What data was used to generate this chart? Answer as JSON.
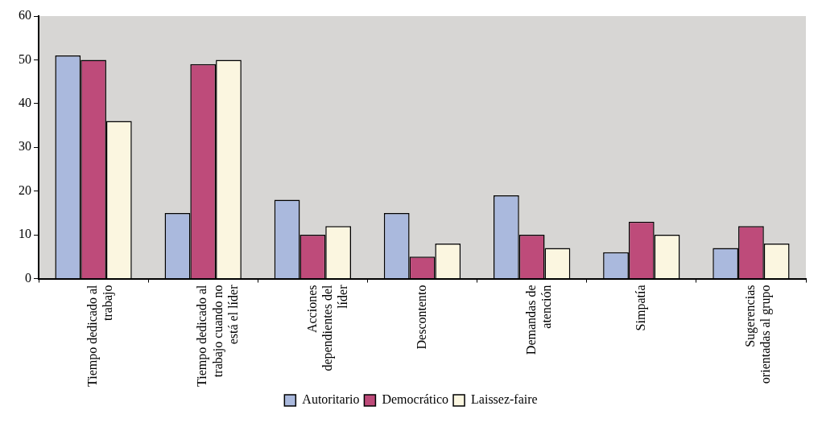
{
  "chart_data": {
    "type": "bar",
    "categories": [
      "Tiempo dedicado al trabajo",
      "Tiempo dedicado al trabajo cuando no está el líder",
      "Acciones dependientes del líder",
      "Descontento",
      "Demandas de atención",
      "Simpatía",
      "Sugerencias orientadas al grupo"
    ],
    "series": [
      {
        "name": "Autoritario",
        "color": "#aab9dd",
        "values": [
          51,
          15,
          18,
          15,
          19,
          6,
          7
        ]
      },
      {
        "name": "Democrático",
        "color": "#be4b7a",
        "values": [
          50,
          49,
          10,
          5,
          10,
          13,
          12
        ]
      },
      {
        "name": "Laissez-faire",
        "color": "#fbf6e0",
        "values": [
          36,
          50,
          12,
          8,
          7,
          10,
          8
        ]
      }
    ],
    "ylim": [
      0,
      60
    ],
    "yticks": [
      0,
      10,
      20,
      30,
      40,
      50,
      60
    ],
    "grid": false,
    "legend": "bottom"
  }
}
